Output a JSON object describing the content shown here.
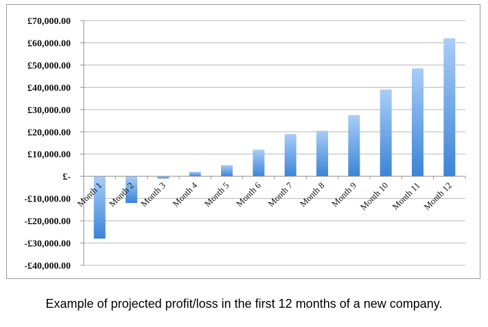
{
  "caption": "Example of projected profit/loss in the first 12 months of a new company.",
  "chart_data": {
    "type": "bar",
    "categories": [
      "Month 1",
      "Month 2",
      "Month 3",
      "Month 4",
      "Month 5",
      "Month 6",
      "Month 7",
      "Month 8",
      "Month 9",
      "Month 10",
      "Month 11",
      "Month 12"
    ],
    "values": [
      -28000,
      -12000,
      -1000,
      2000,
      5000,
      12000,
      19000,
      20500,
      27500,
      39000,
      48500,
      62000
    ],
    "ylim": [
      -40000,
      70000
    ],
    "ytick_values": [
      70000,
      60000,
      50000,
      40000,
      30000,
      20000,
      10000,
      0,
      -10000,
      -20000,
      -30000,
      -40000
    ],
    "ytick_labels": [
      "£70,000.00",
      "£60,000.00",
      "£50,000.00",
      "£40,000.00",
      "£30,000.00",
      "£20,000.00",
      "£10,000.00",
      "£-",
      "-£10,000.00",
      "-£20,000.00",
      "-£30,000.00",
      "-£40,000.00"
    ],
    "grid": true,
    "colors": {
      "bar_top": "#a9cdf7",
      "bar_bottom": "#3b84d6",
      "grid": "#b5b5b5",
      "axis": "#8c8c8c"
    }
  }
}
